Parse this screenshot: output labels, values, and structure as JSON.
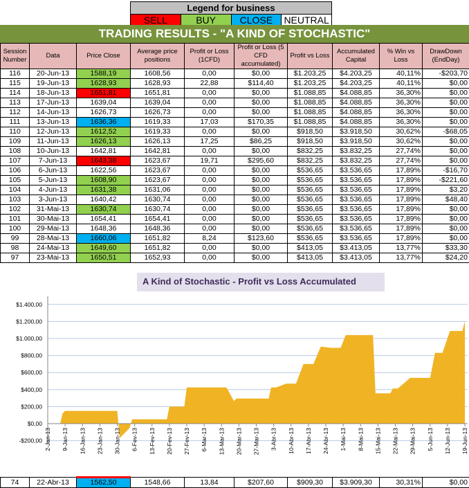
{
  "legend": {
    "title": "Legend for business",
    "items": [
      {
        "label": "SELL",
        "color": "#ff0000"
      },
      {
        "label": "BUY",
        "color": "#92d050"
      },
      {
        "label": "CLOSE",
        "color": "#00b0f0"
      },
      {
        "label": "NEUTRAL",
        "color": "#ffffff"
      }
    ]
  },
  "title": "TRADING RESULTS - \"A KIND OF STOCHASTIC\"",
  "columns": [
    "Session Number",
    "Data",
    "Price Close",
    "Average price positions",
    "Profit or Loss (1CFD)",
    "Profit or Loss (5 CFD accumulated)",
    "Profit vs Loss",
    "Accumulated Capital",
    "% Win vs Loss",
    "DrawDown (EndDay)"
  ],
  "rows": [
    {
      "signal": "BUY",
      "cells": [
        "116",
        "20-Jun-13",
        "1588,19",
        "1608,56",
        "0,00",
        "$0,00",
        "$1.203,25",
        "$4.203,25",
        "40,11%",
        "-$203,70"
      ]
    },
    {
      "signal": "BUY",
      "cells": [
        "115",
        "19-Jun-13",
        "1628,93",
        "1628,93",
        "22,88",
        "$114,40",
        "$1.203,25",
        "$4.203,25",
        "40,11%",
        "$0,00"
      ]
    },
    {
      "signal": "SELL",
      "cells": [
        "114",
        "18-Jun-13",
        "1651,81",
        "1651,81",
        "0,00",
        "$0,00",
        "$1.088,85",
        "$4.088,85",
        "36,30%",
        "$0,00"
      ]
    },
    {
      "signal": "NEUTRAL",
      "cells": [
        "113",
        "17-Jun-13",
        "1639,04",
        "1639,04",
        "0,00",
        "$0,00",
        "$1.088,85",
        "$4.088,85",
        "36,30%",
        "$0,00"
      ]
    },
    {
      "signal": "NEUTRAL",
      "cells": [
        "112",
        "14-Jun-13",
        "1626,73",
        "1626,73",
        "0,00",
        "$0,00",
        "$1.088,85",
        "$4.088,85",
        "36,30%",
        "$0,00"
      ]
    },
    {
      "signal": "CLOSE",
      "cells": [
        "111",
        "13-Jun-13",
        "1636,36",
        "1619,33",
        "17,03",
        "$170,35",
        "$1.088,85",
        "$4.088,85",
        "36,30%",
        "$0,00"
      ]
    },
    {
      "signal": "BUY",
      "cells": [
        "110",
        "12-Jun-13",
        "1612,52",
        "1619,33",
        "0,00",
        "$0,00",
        "$918,50",
        "$3.918,50",
        "30,62%",
        "-$68,05"
      ]
    },
    {
      "signal": "BUY",
      "cells": [
        "109",
        "11-Jun-13",
        "1626,13",
        "1626,13",
        "17,25",
        "$86,25",
        "$918,50",
        "$3.918,50",
        "30,62%",
        "$0,00"
      ]
    },
    {
      "signal": "NEUTRAL",
      "cells": [
        "108",
        "10-Jun-13",
        "1642,81",
        "1642,81",
        "0,00",
        "$0,00",
        "$832,25",
        "$3.832,25",
        "27,74%",
        "$0,00"
      ]
    },
    {
      "signal": "SELL",
      "cells": [
        "107",
        "7-Jun-13",
        "1643,38",
        "1623,67",
        "19,71",
        "$295,60",
        "$832,25",
        "$3.832,25",
        "27,74%",
        "$0,00"
      ]
    },
    {
      "signal": "NEUTRAL",
      "cells": [
        "106",
        "6-Jun-13",
        "1622,56",
        "1623,67",
        "0,00",
        "$0,00",
        "$536,65",
        "$3.536,65",
        "17,89%",
        "-$16,70"
      ]
    },
    {
      "signal": "BUY",
      "cells": [
        "105",
        "5-Jun-13",
        "1608,90",
        "1623,67",
        "0,00",
        "$0,00",
        "$536,65",
        "$3.536,65",
        "17,89%",
        "-$221,60"
      ]
    },
    {
      "signal": "BUY",
      "cells": [
        "104",
        "4-Jun-13",
        "1631,38",
        "1631,06",
        "0,00",
        "$0,00",
        "$536,65",
        "$3.536,65",
        "17,89%",
        "$3,20"
      ]
    },
    {
      "signal": "NEUTRAL",
      "cells": [
        "103",
        "3-Jun-13",
        "1640,42",
        "1630,74",
        "0,00",
        "$0,00",
        "$536,65",
        "$3.536,65",
        "17,89%",
        "$48,40"
      ]
    },
    {
      "signal": "BUY",
      "cells": [
        "102",
        "31-Mai-13",
        "1630,74",
        "1630,74",
        "0,00",
        "$0,00",
        "$536,65",
        "$3.536,65",
        "17,89%",
        "$0,00"
      ]
    },
    {
      "signal": "NEUTRAL",
      "cells": [
        "101",
        "30-Mai-13",
        "1654,41",
        "1654,41",
        "0,00",
        "$0,00",
        "$536,65",
        "$3.536,65",
        "17,89%",
        "$0,00"
      ]
    },
    {
      "signal": "NEUTRAL",
      "cells": [
        "100",
        "29-Mai-13",
        "1648,36",
        "1648,36",
        "0,00",
        "$0,00",
        "$536,65",
        "$3.536,65",
        "17,89%",
        "$0,00"
      ]
    },
    {
      "signal": "CLOSE",
      "cells": [
        "99",
        "28-Mai-13",
        "1660,06",
        "1651,82",
        "8,24",
        "$123,60",
        "$536,65",
        "$3.536,65",
        "17,89%",
        "$0,00"
      ]
    },
    {
      "signal": "BUY",
      "cells": [
        "98",
        "24-Mai-13",
        "1649,60",
        "1651,82",
        "0,00",
        "$0,00",
        "$413,05",
        "$3.413,05",
        "13,77%",
        "$33,30"
      ]
    },
    {
      "signal": "BUY",
      "cells": [
        "97",
        "23-Mai-13",
        "1650,51",
        "1652,93",
        "0,00",
        "$0,00",
        "$413,05",
        "$3.413,05",
        "13,77%",
        "$24,20"
      ]
    }
  ],
  "bottom_row": {
    "signal": "CLOSE",
    "cells": [
      "74",
      "22-Abr-13",
      "1562,50",
      "1548,66",
      "13,84",
      "$207,60",
      "$909,30",
      "$3.909,30",
      "30,31%",
      "$0,00"
    ]
  },
  "chart_data": {
    "type": "area",
    "title": "A Kind of Stochastic - Profit vs Loss Accumulated",
    "color": "#f0b323",
    "grid": true,
    "ylim": [
      -200,
      1400
    ],
    "y_ticks": [
      "-$200,00",
      "$0,00",
      "$200,00",
      "$400,00",
      "$600,00",
      "$800,00",
      "$1.000,00",
      "$1.200,00",
      "$1.400,00"
    ],
    "x_ticks": [
      "2-Jan-13",
      "9-Jan-13",
      "16-Jan-13",
      "23-Jan-13",
      "30-Jan-13",
      "6-Fev-13",
      "13-Fev-13",
      "20-Fev-13",
      "27-Fev-13",
      "6-Mar-13",
      "13-Mar-13",
      "20-Mar-13",
      "27-Mar-13",
      "3-Abr-13",
      "10-Abr-13",
      "17-Abr-13",
      "24-Abr-13",
      "1-Mai-13",
      "8-Mai-13",
      "15-Mai-13",
      "22-Mai-13",
      "29-Mai-13",
      "5-Jun-13",
      "12-Jun-13",
      "19-Jun-13"
    ],
    "x": [
      "2013-01-07",
      "2013-01-08",
      "2013-01-09",
      "2013-01-30",
      "2013-01-31",
      "2013-02-04",
      "2013-02-05",
      "2013-02-19",
      "2013-02-20",
      "2013-02-26",
      "2013-02-27",
      "2013-03-15",
      "2013-03-18",
      "2013-03-19",
      "2013-04-01",
      "2013-04-02",
      "2013-04-04",
      "2013-04-08",
      "2013-04-12",
      "2013-04-15",
      "2013-04-19",
      "2013-04-22",
      "2013-04-26",
      "2013-04-30",
      "2013-05-02",
      "2013-05-13",
      "2013-05-14",
      "2013-05-20",
      "2013-05-21",
      "2013-05-23",
      "2013-05-28",
      "2013-06-05",
      "2013-06-07",
      "2013-06-10",
      "2013-06-11",
      "2013-06-13",
      "2013-06-18",
      "2013-06-19"
    ],
    "y": [
      0,
      120,
      150,
      150,
      -170,
      -50,
      50,
      50,
      200,
      200,
      425,
      425,
      265,
      295,
      295,
      425,
      425,
      470,
      470,
      700,
      700,
      905,
      890,
      890,
      1040,
      1040,
      355,
      355,
      413,
      413,
      537,
      537,
      832,
      832,
      918,
      1089,
      1089,
      1203
    ]
  }
}
